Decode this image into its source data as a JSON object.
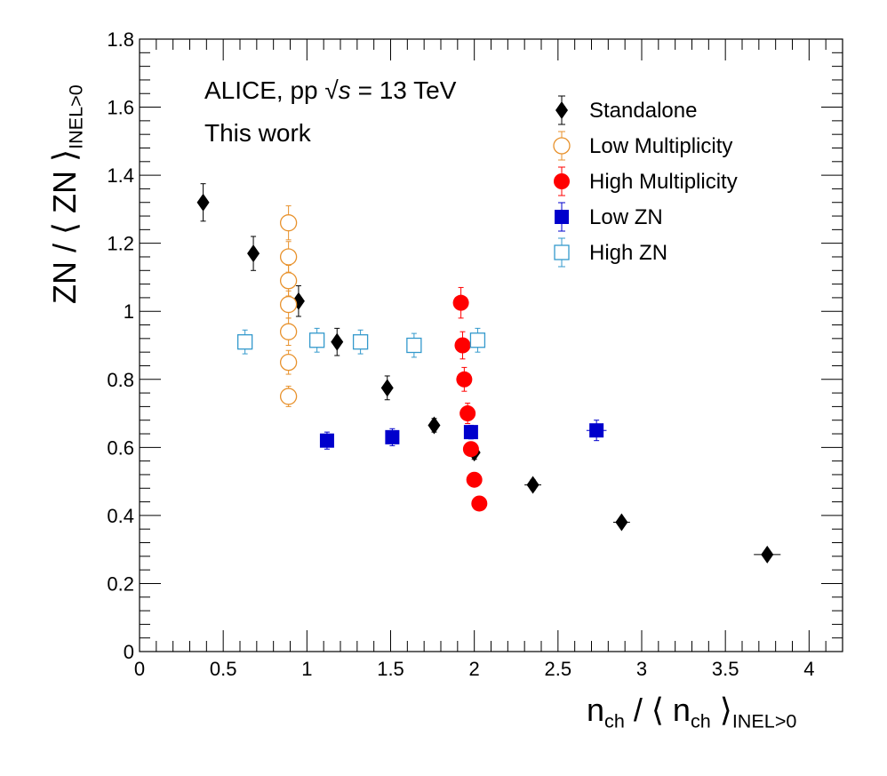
{
  "chart_data": {
    "type": "scatter",
    "xlim": [
      0,
      4.2
    ],
    "ylim": [
      0,
      1.8
    ],
    "x_ticks": [
      "0",
      "0.5",
      "1",
      "1.5",
      "2",
      "2.5",
      "3",
      "3.5",
      "4"
    ],
    "y_ticks": [
      "0",
      "0.2",
      "0.4",
      "0.6",
      "0.8",
      "1",
      "1.2",
      "1.4",
      "1.6",
      "1.8"
    ],
    "xlabel": {
      "main": "n",
      "sub": "ch",
      "mid": "/ ⟨ n",
      "mid_sub": "ch",
      "close": "⟩",
      "close_sub": "INEL>0"
    },
    "ylabel": {
      "main": "ZN / ⟨ ZN ⟩",
      "sub": "INEL>0"
    },
    "annotations": {
      "line1_prefix": "ALICE, pp",
      "sqrt": "√s",
      "line1_suffix": "= 13 TeV",
      "line2": "This work"
    },
    "legend_position": "top-right",
    "grid": false,
    "series": [
      {
        "name": "Standalone",
        "marker": "diamond",
        "color": "#000000",
        "points": [
          {
            "x": 0.38,
            "y": 1.32,
            "ey": 0.055
          },
          {
            "x": 0.68,
            "y": 1.17,
            "ey": 0.05
          },
          {
            "x": 0.95,
            "y": 1.03,
            "ey": 0.045
          },
          {
            "x": 1.18,
            "y": 0.91,
            "ey": 0.04
          },
          {
            "x": 1.48,
            "y": 0.775,
            "ey": 0.035
          },
          {
            "x": 1.76,
            "y": 0.665,
            "ey": 0.02
          },
          {
            "x": 2.0,
            "y": 0.585,
            "ey": 0.02
          },
          {
            "x": 2.35,
            "y": 0.49,
            "ey": 0.015,
            "ex": 0.05
          },
          {
            "x": 2.88,
            "y": 0.38,
            "ey": 0.012,
            "ex": 0.05
          },
          {
            "x": 3.75,
            "y": 0.285,
            "ey": 0.012,
            "ex": 0.08
          }
        ]
      },
      {
        "name": "Low Multiplicity",
        "marker": "open-circle",
        "color": "#e8922d",
        "points": [
          {
            "x": 0.89,
            "y": 1.26,
            "ey": 0.05
          },
          {
            "x": 0.89,
            "y": 1.16,
            "ey": 0.045
          },
          {
            "x": 0.89,
            "y": 1.09,
            "ey": 0.045
          },
          {
            "x": 0.89,
            "y": 1.02,
            "ey": 0.04
          },
          {
            "x": 0.89,
            "y": 0.94,
            "ey": 0.04
          },
          {
            "x": 0.89,
            "y": 0.85,
            "ey": 0.035
          },
          {
            "x": 0.89,
            "y": 0.75,
            "ey": 0.03
          }
        ]
      },
      {
        "name": "High Multiplicity",
        "marker": "filled-circle",
        "color": "#ff0000",
        "points": [
          {
            "x": 1.92,
            "y": 1.025,
            "ey": 0.045
          },
          {
            "x": 1.93,
            "y": 0.9,
            "ey": 0.04
          },
          {
            "x": 1.94,
            "y": 0.8,
            "ey": 0.035
          },
          {
            "x": 1.96,
            "y": 0.7,
            "ey": 0.03
          },
          {
            "x": 1.98,
            "y": 0.595,
            "ey": 0.02
          },
          {
            "x": 2.0,
            "y": 0.505,
            "ey": 0.015
          },
          {
            "x": 2.03,
            "y": 0.435,
            "ey": 0.01
          }
        ]
      },
      {
        "name": "Low ZN",
        "marker": "filled-square",
        "color": "#0000cc",
        "points": [
          {
            "x": 1.12,
            "y": 0.62,
            "ey": 0.025
          },
          {
            "x": 1.51,
            "y": 0.63,
            "ey": 0.025
          },
          {
            "x": 1.98,
            "y": 0.645,
            "ey": 0.02,
            "ex": 0.04
          },
          {
            "x": 2.73,
            "y": 0.65,
            "ey": 0.03,
            "ex": 0.06
          }
        ]
      },
      {
        "name": "High ZN",
        "marker": "open-square",
        "color": "#3399cc",
        "points": [
          {
            "x": 0.63,
            "y": 0.91,
            "ey": 0.035
          },
          {
            "x": 1.06,
            "y": 0.915,
            "ey": 0.035
          },
          {
            "x": 1.32,
            "y": 0.91,
            "ey": 0.035
          },
          {
            "x": 1.64,
            "y": 0.9,
            "ey": 0.035
          },
          {
            "x": 2.02,
            "y": 0.915,
            "ey": 0.035,
            "ex": 0.04
          }
        ]
      }
    ]
  }
}
